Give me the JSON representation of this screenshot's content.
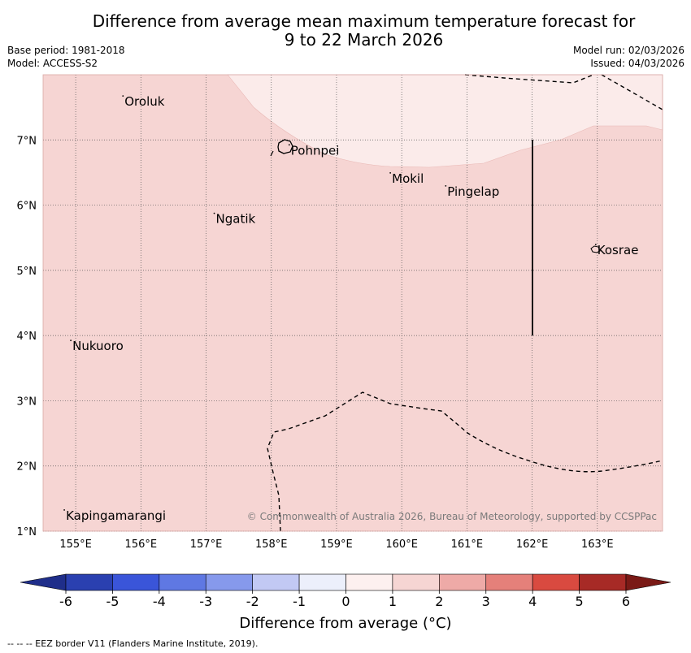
{
  "title": {
    "line1": "Difference from average mean maximum temperature forecast for",
    "line2": "9 to 22 March 2026"
  },
  "meta": {
    "base_period": "Base period: 1981-2018",
    "model": "Model: ACCESS-S2",
    "model_run": "Model run: 02/03/2026",
    "issued": "Issued: 04/03/2026"
  },
  "map": {
    "lon_range": [
      154.5,
      164.0
    ],
    "lat_range": [
      1.0,
      8.0
    ],
    "lon_ticks": [
      155,
      156,
      157,
      158,
      159,
      160,
      161,
      162,
      163
    ],
    "lon_tick_labels": [
      "155°E",
      "156°E",
      "157°E",
      "158°E",
      "159°E",
      "160°E",
      "161°E",
      "162°E",
      "163°E"
    ],
    "lat_ticks": [
      7,
      6,
      5,
      4,
      3,
      2,
      1
    ],
    "lat_tick_labels": [
      "7°N",
      "6°N",
      "5°N",
      "4°N",
      "3°N",
      "2°N",
      "1°N"
    ],
    "places": [
      {
        "name": "Oroluk",
        "lon": 155.75,
        "lat": 7.6
      },
      {
        "name": "Pohnpei",
        "lon": 158.3,
        "lat": 6.85
      },
      {
        "name": "Mokil",
        "lon": 159.85,
        "lat": 6.42
      },
      {
        "name": "Pingelap",
        "lon": 160.7,
        "lat": 6.22
      },
      {
        "name": "Ngatik",
        "lon": 157.15,
        "lat": 5.8
      },
      {
        "name": "Kosrae",
        "lon": 163.0,
        "lat": 5.32
      },
      {
        "name": "Nukuoro",
        "lon": 154.95,
        "lat": 3.85
      },
      {
        "name": "Kapingamarangi",
        "lon": 154.85,
        "lat": 1.25
      }
    ],
    "copyright": "© Commonwealth of Australia 2026, Bureau of Meteorology, supported by CCSPPac",
    "colors": {
      "region_1_2": "#f6d5d3",
      "region_0_1": "#fbebea"
    }
  },
  "colorbar": {
    "ticks": [
      "-6",
      "-5",
      "-4",
      "-3",
      "-2",
      "-1",
      "0",
      "1",
      "2",
      "3",
      "4",
      "5",
      "6"
    ],
    "colors": [
      "#1f2e8a",
      "#2a40b0",
      "#3a55d9",
      "#5f78e3",
      "#8699ec",
      "#c2c9f4",
      "#eceffb",
      "#fdf0ef",
      "#f6d5d3",
      "#eeaaa7",
      "#e5807a",
      "#d94a40",
      "#a72a26",
      "#7a1a16"
    ],
    "title": "Difference from average (°C)"
  },
  "footer": "--  --  -- EEZ border V11 (Flanders Marine Institute, 2019)."
}
